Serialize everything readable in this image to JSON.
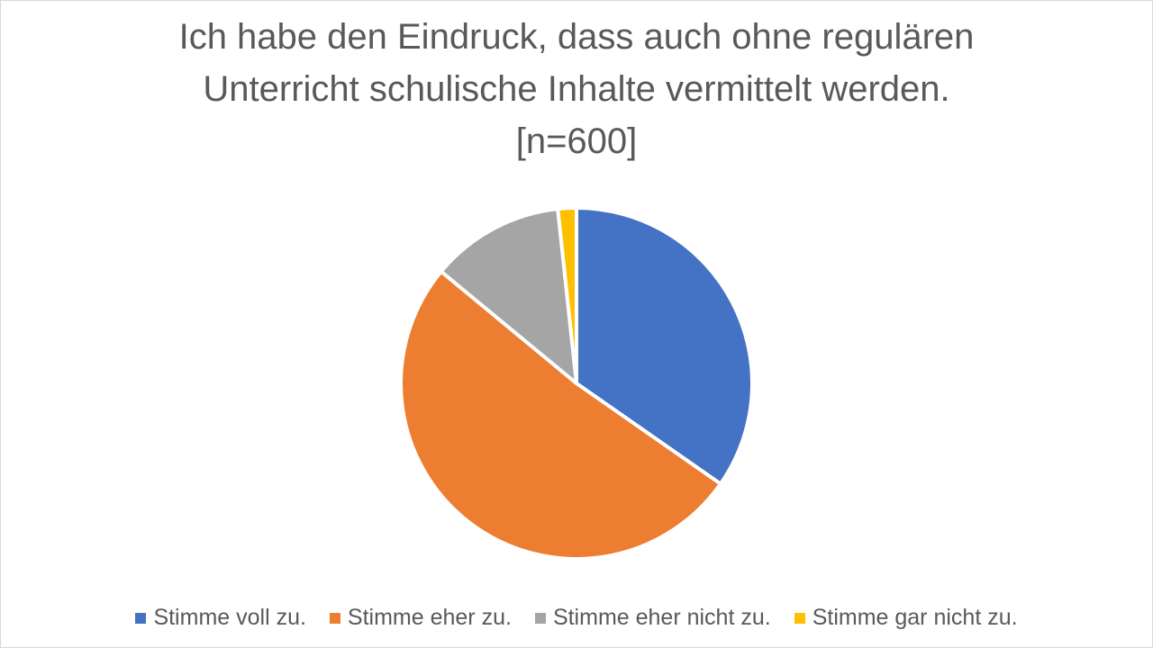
{
  "chart_data": {
    "type": "pie",
    "title_lines": [
      "Ich habe den Eindruck, dass auch ohne regulären",
      "Unterricht schulische Inhalte vermittelt werden.",
      "[n=600]"
    ],
    "slices": [
      {
        "label": "Stimme voll zu.",
        "value": 34.7,
        "color": "#4472C4"
      },
      {
        "label": "Stimme eher zu.",
        "value": 51.3,
        "color": "#ED7D31"
      },
      {
        "label": "Stimme eher nicht zu.",
        "value": 12.3,
        "color": "#A5A5A5"
      },
      {
        "label": "Stimme gar nicht zu.",
        "value": 1.7,
        "color": "#FFC000"
      }
    ],
    "legend_position": "bottom",
    "start_angle": "12 o'clock",
    "direction": "clockwise"
  }
}
